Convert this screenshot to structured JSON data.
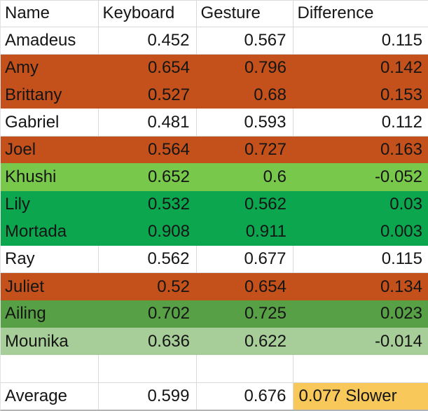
{
  "colors": {
    "white": "#FFFFFF",
    "orange": "#C4511B",
    "lightGreen": "#78C84C",
    "green": "#0CA64F",
    "mediumGreen": "#57A045",
    "paleGreen": "#A7CE98",
    "gold": "#F8C85A",
    "gridline": "#D9D9D9",
    "text": "#151515"
  },
  "table": {
    "columns": [
      {
        "label": "Name"
      },
      {
        "label": "Keyboard"
      },
      {
        "label": "Gesture"
      },
      {
        "label": "Difference"
      }
    ],
    "rows": [
      {
        "name": "Amadeus",
        "keyboard": "0.452",
        "gesture": "0.567",
        "difference": "0.115",
        "fill": "white"
      },
      {
        "name": "Amy",
        "keyboard": "0.654",
        "gesture": "0.796",
        "difference": "0.142",
        "fill": "orange"
      },
      {
        "name": "Brittany",
        "keyboard": "0.527",
        "gesture": "0.68",
        "difference": "0.153",
        "fill": "orange"
      },
      {
        "name": "Gabriel",
        "keyboard": "0.481",
        "gesture": "0.593",
        "difference": "0.112",
        "fill": "white"
      },
      {
        "name": "Joel",
        "keyboard": "0.564",
        "gesture": "0.727",
        "difference": "0.163",
        "fill": "orange"
      },
      {
        "name": "Khushi",
        "keyboard": "0.652",
        "gesture": "0.6",
        "difference": "-0.052",
        "fill": "lightGreen"
      },
      {
        "name": "Lily",
        "keyboard": "0.532",
        "gesture": "0.562",
        "difference": "0.03",
        "fill": "green"
      },
      {
        "name": "Mortada",
        "keyboard": "0.908",
        "gesture": "0.911",
        "difference": "0.003",
        "fill": "green"
      },
      {
        "name": "Ray",
        "keyboard": "0.562",
        "gesture": "0.677",
        "difference": "0.115",
        "fill": "white"
      },
      {
        "name": "Juliet",
        "keyboard": "0.52",
        "gesture": "0.654",
        "difference": "0.134",
        "fill": "orange"
      },
      {
        "name": "Ailing",
        "keyboard": "0.702",
        "gesture": "0.725",
        "difference": "0.023",
        "fill": "mediumGreen"
      },
      {
        "name": "Mounika",
        "keyboard": "0.636",
        "gesture": "0.622",
        "difference": "-0.014",
        "fill": "paleGreen"
      },
      {
        "name": "",
        "keyboard": "",
        "gesture": "",
        "difference": "",
        "fill": "white"
      },
      {
        "name": "Average",
        "keyboard": "0.599",
        "gesture": "0.676",
        "difference": "0.077 Slower",
        "fill": "white",
        "difference_fill": "gold",
        "difference_align": "left"
      }
    ]
  }
}
